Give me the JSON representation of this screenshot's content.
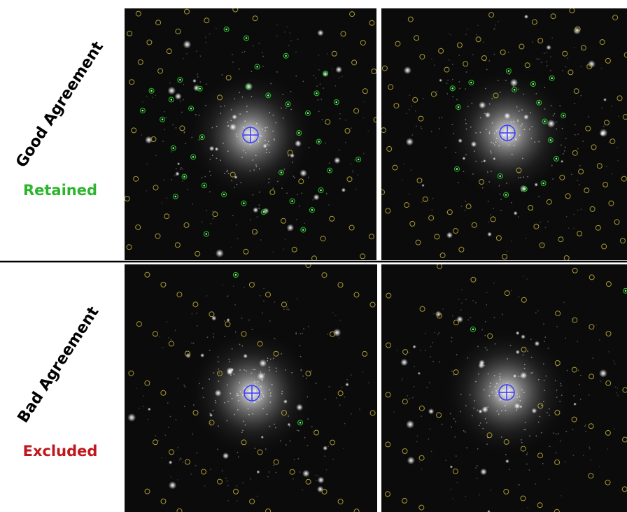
{
  "rows": [
    {
      "title": "Good Agreement",
      "status": "Retained"
    },
    {
      "title": "Bad Agreement",
      "status": "Excluded"
    }
  ]
}
